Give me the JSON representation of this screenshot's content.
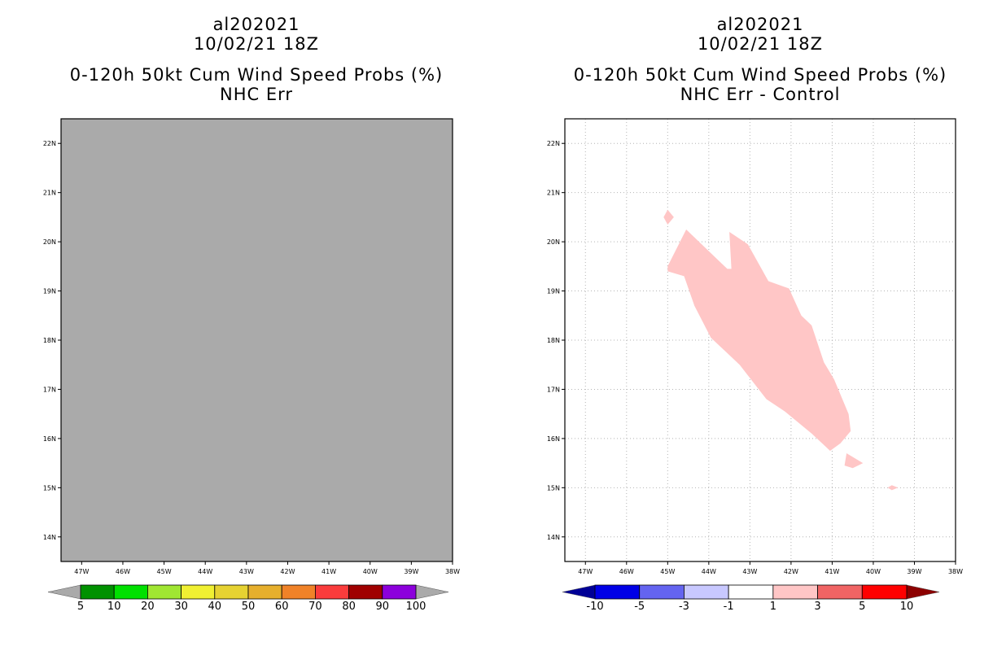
{
  "chart_data": [
    {
      "type": "heatmap",
      "title_lines": [
        "al202021",
        "10/02/21 18Z",
        "0-120h 50kt Cum Wind Speed Probs (%)",
        "NHC Err"
      ],
      "x_ticks": [
        "47W",
        "46W",
        "45W",
        "44W",
        "43W",
        "42W",
        "41W",
        "40W",
        "39W",
        "38W"
      ],
      "y_ticks": [
        "22N",
        "21N",
        "20N",
        "19N",
        "18N",
        "17N",
        "16N",
        "15N",
        "14N"
      ],
      "xlim": [
        -47.5,
        -38
      ],
      "ylim": [
        13.5,
        22.5
      ],
      "field_note": "missing data everywhere (uniform gray fill)",
      "missing_color": "#aaaaaa",
      "colorbar": {
        "labels": [
          "5",
          "10",
          "20",
          "30",
          "40",
          "50",
          "60",
          "70",
          "80",
          "90",
          "100"
        ],
        "colors": [
          "#009100",
          "#00e000",
          "#a0e632",
          "#f0f032",
          "#e6d232",
          "#e6af2d",
          "#f08228",
          "#fa3c3c",
          "#a00000",
          "#8c00dc"
        ],
        "under_color": "#aaaaaa",
        "over_color": "#aaaaaa"
      }
    },
    {
      "type": "heatmap",
      "title_lines": [
        "al202021",
        "10/02/21 18Z",
        "0-120h 50kt Cum Wind Speed Probs (%)",
        "NHC Err - Control"
      ],
      "x_ticks": [
        "47W",
        "46W",
        "45W",
        "44W",
        "43W",
        "42W",
        "41W",
        "40W",
        "39W",
        "38W"
      ],
      "y_ticks": [
        "22N",
        "21N",
        "20N",
        "19N",
        "18N",
        "17N",
        "16N",
        "15N",
        "14N"
      ],
      "xlim": [
        -47.5,
        -38
      ],
      "ylim": [
        13.5,
        22.5
      ],
      "grid": true,
      "field_note": "difference field; only +1 to +3 contour band present",
      "regions": [
        {
          "name": "main-band",
          "value_band": "1 to 3",
          "color": "#ffc6c6",
          "points": [
            [
              -45.0,
              19.5
            ],
            [
              -44.55,
              20.25
            ],
            [
              -43.55,
              19.45
            ],
            [
              -43.45,
              19.45
            ],
            [
              -43.5,
              20.2
            ],
            [
              -43.05,
              19.95
            ],
            [
              -42.55,
              19.2
            ],
            [
              -42.05,
              19.05
            ],
            [
              -41.75,
              18.5
            ],
            [
              -41.5,
              18.3
            ],
            [
              -41.2,
              17.55
            ],
            [
              -40.95,
              17.2
            ],
            [
              -40.6,
              16.5
            ],
            [
              -40.55,
              16.15
            ],
            [
              -40.8,
              15.9
            ],
            [
              -41.05,
              15.75
            ],
            [
              -41.5,
              16.1
            ],
            [
              -42.15,
              16.55
            ],
            [
              -42.6,
              16.8
            ],
            [
              -43.25,
              17.5
            ],
            [
              -43.95,
              18.05
            ],
            [
              -44.35,
              18.7
            ],
            [
              -44.6,
              19.3
            ],
            [
              -45.0,
              19.4
            ]
          ]
        },
        {
          "name": "blob-north",
          "value_band": "1 to 3",
          "color": "#ffc6c6",
          "points": [
            [
              -45.0,
              20.65
            ],
            [
              -44.85,
              20.5
            ],
            [
              -45.0,
              20.35
            ],
            [
              -45.1,
              20.5
            ]
          ]
        },
        {
          "name": "blob-south",
          "value_band": "1 to 3",
          "color": "#ffc6c6",
          "points": [
            [
              -40.65,
              15.7
            ],
            [
              -40.25,
              15.5
            ],
            [
              -40.5,
              15.4
            ],
            [
              -40.7,
              15.45
            ]
          ]
        },
        {
          "name": "blob-east",
          "value_band": "1 to 3",
          "color": "#ffc6c6",
          "points": [
            [
              -39.55,
              15.05
            ],
            [
              -39.4,
              15.0
            ],
            [
              -39.55,
              14.95
            ],
            [
              -39.65,
              15.0
            ]
          ]
        }
      ],
      "colorbar": {
        "labels": [
          "-10",
          "-5",
          "-3",
          "-1",
          "1",
          "3",
          "5",
          "10"
        ],
        "colors": [
          "#0000e6",
          "#6464f0",
          "#c8c8ff",
          "#ffffff",
          "#ffc6c6",
          "#f06464",
          "#ff0000"
        ],
        "under_color": "#000096",
        "over_color": "#8c0000"
      }
    }
  ]
}
